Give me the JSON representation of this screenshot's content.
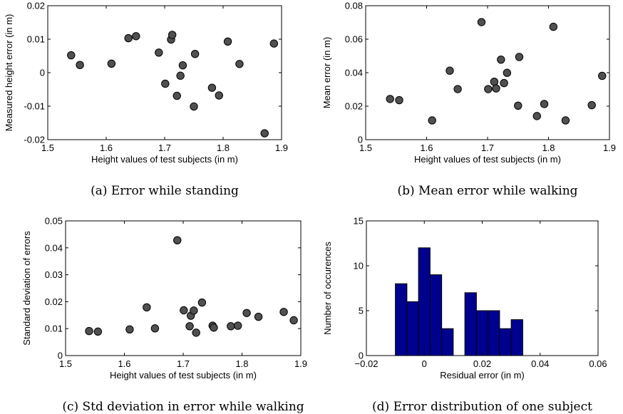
{
  "chart_data": [
    {
      "type": "scatter",
      "caption": "(a) Error while standing",
      "xlabel": "Height values of test subjects (in m)",
      "ylabel": "Measured height error (in m)",
      "xlim": [
        1.5,
        1.9
      ],
      "ylim": [
        -0.02,
        0.02
      ],
      "xticks": [
        "1.5",
        "1.6",
        "1.7",
        "1.8",
        "1.9"
      ],
      "yticks": [
        "-0.02",
        "-0.01",
        "0",
        "0.01",
        "0.02"
      ],
      "grid": false,
      "marker_color": "#505050",
      "points": [
        {
          "x": 1.54,
          "y": 0.0052
        },
        {
          "x": 1.555,
          "y": 0.0023
        },
        {
          "x": 1.609,
          "y": 0.0027
        },
        {
          "x": 1.638,
          "y": 0.0103
        },
        {
          "x": 1.651,
          "y": 0.0109
        },
        {
          "x": 1.69,
          "y": 0.006
        },
        {
          "x": 1.701,
          "y": -0.0033
        },
        {
          "x": 1.711,
          "y": 0.0099
        },
        {
          "x": 1.713,
          "y": 0.0113
        },
        {
          "x": 1.721,
          "y": -0.0069
        },
        {
          "x": 1.727,
          "y": -0.0009
        },
        {
          "x": 1.731,
          "y": 0.0022
        },
        {
          "x": 1.75,
          "y": -0.0101
        },
        {
          "x": 1.752,
          "y": 0.0056
        },
        {
          "x": 1.781,
          "y": -0.0045
        },
        {
          "x": 1.793,
          "y": -0.0068
        },
        {
          "x": 1.808,
          "y": 0.0093
        },
        {
          "x": 1.828,
          "y": 0.0026
        },
        {
          "x": 1.871,
          "y": -0.0181
        },
        {
          "x": 1.887,
          "y": 0.0087
        }
      ]
    },
    {
      "type": "scatter",
      "caption": "(b) Mean error while walking",
      "xlabel": "Height values of test subjects (in m)",
      "ylabel": "Mean error (in m)",
      "xlim": [
        1.5,
        1.9
      ],
      "ylim": [
        0,
        0.08
      ],
      "xticks": [
        "1.5",
        "1.6",
        "1.7",
        "1.8",
        "1.9"
      ],
      "yticks": [
        "0",
        "0.02",
        "0.04",
        "0.06",
        "0.08"
      ],
      "grid": false,
      "marker_color": "#505050",
      "points": [
        {
          "x": 1.54,
          "y": 0.0243
        },
        {
          "x": 1.555,
          "y": 0.0236
        },
        {
          "x": 1.609,
          "y": 0.0115
        },
        {
          "x": 1.638,
          "y": 0.0412
        },
        {
          "x": 1.651,
          "y": 0.0302
        },
        {
          "x": 1.69,
          "y": 0.0702
        },
        {
          "x": 1.701,
          "y": 0.0302
        },
        {
          "x": 1.711,
          "y": 0.0346
        },
        {
          "x": 1.714,
          "y": 0.0306
        },
        {
          "x": 1.722,
          "y": 0.0478
        },
        {
          "x": 1.727,
          "y": 0.0338
        },
        {
          "x": 1.732,
          "y": 0.0399
        },
        {
          "x": 1.75,
          "y": 0.0203
        },
        {
          "x": 1.752,
          "y": 0.0494
        },
        {
          "x": 1.781,
          "y": 0.0141
        },
        {
          "x": 1.793,
          "y": 0.0213
        },
        {
          "x": 1.808,
          "y": 0.0674
        },
        {
          "x": 1.828,
          "y": 0.0115
        },
        {
          "x": 1.871,
          "y": 0.0206
        },
        {
          "x": 1.888,
          "y": 0.0381
        }
      ]
    },
    {
      "type": "scatter",
      "caption": "(c) Std deviation in error while walking",
      "xlabel": "Height values of test subjects (in m)",
      "ylabel": "Standard deviation of errors",
      "xlim": [
        1.5,
        1.9
      ],
      "ylim": [
        0,
        0.05
      ],
      "xticks": [
        "1.5",
        "1.6",
        "1.7",
        "1.8",
        "1.9"
      ],
      "yticks": [
        "0",
        "0.01",
        "0.02",
        "0.03",
        "0.04",
        "0.05"
      ],
      "grid": false,
      "marker_color": "#505050",
      "points": [
        {
          "x": 1.54,
          "y": 0.0091
        },
        {
          "x": 1.555,
          "y": 0.0089
        },
        {
          "x": 1.609,
          "y": 0.0097
        },
        {
          "x": 1.638,
          "y": 0.0179
        },
        {
          "x": 1.652,
          "y": 0.0101
        },
        {
          "x": 1.69,
          "y": 0.0428
        },
        {
          "x": 1.701,
          "y": 0.0168
        },
        {
          "x": 1.711,
          "y": 0.0109
        },
        {
          "x": 1.713,
          "y": 0.0148
        },
        {
          "x": 1.718,
          "y": 0.0167
        },
        {
          "x": 1.722,
          "y": 0.0085
        },
        {
          "x": 1.732,
          "y": 0.0197
        },
        {
          "x": 1.75,
          "y": 0.0111
        },
        {
          "x": 1.752,
          "y": 0.0104
        },
        {
          "x": 1.781,
          "y": 0.0109
        },
        {
          "x": 1.793,
          "y": 0.0111
        },
        {
          "x": 1.808,
          "y": 0.0158
        },
        {
          "x": 1.828,
          "y": 0.0144
        },
        {
          "x": 1.871,
          "y": 0.0162
        },
        {
          "x": 1.888,
          "y": 0.0131
        }
      ]
    },
    {
      "type": "bar",
      "caption": "(d) Error distribution of one subject",
      "xlabel": "Residual error (in m)",
      "ylabel": "Number of occurences",
      "xlim": [
        -0.02,
        0.06
      ],
      "ylim": [
        0,
        15
      ],
      "xticks": [
        "−0.02",
        "0",
        "0.02",
        "0.04",
        "0.06"
      ],
      "yticks": [
        "0",
        "5",
        "10",
        "15"
      ],
      "grid": false,
      "bar_color": "#00008f",
      "bin_width": 0.004,
      "bins": [
        {
          "center": -0.008,
          "count": 8
        },
        {
          "center": -0.004,
          "count": 6
        },
        {
          "center": 0.0,
          "count": 12
        },
        {
          "center": 0.004,
          "count": 9
        },
        {
          "center": 0.008,
          "count": 3
        },
        {
          "center": 0.012,
          "count": 0
        },
        {
          "center": 0.016,
          "count": 7
        },
        {
          "center": 0.02,
          "count": 5
        },
        {
          "center": 0.024,
          "count": 5
        },
        {
          "center": 0.028,
          "count": 3
        },
        {
          "center": 0.032,
          "count": 4
        }
      ]
    }
  ]
}
